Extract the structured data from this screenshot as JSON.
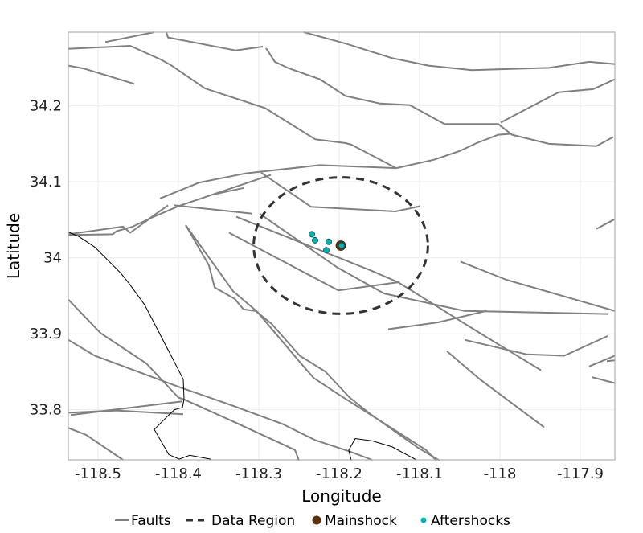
{
  "chart_data": {
    "type": "map",
    "xlabel": "Longitude",
    "ylabel": "Latitude",
    "xlim": [
      -118.537,
      -117.857
    ],
    "ylim": [
      33.734,
      34.297
    ],
    "grid": true,
    "x_ticks": [
      -118.5,
      -118.4,
      -118.3,
      -118.2,
      -118.1,
      -118,
      -117.9
    ],
    "x_tick_labels": [
      "-118.5",
      "-118.4",
      "-118.3",
      "-118.2",
      "-118.1",
      "-118",
      "-117.9"
    ],
    "y_ticks": [
      33.8,
      33.9,
      34,
      34.1,
      34.2
    ],
    "y_tick_labels": [
      "33.8",
      "33.9",
      "34",
      "34.1",
      "34.2"
    ],
    "legend": {
      "placement": "bottom",
      "items": [
        {
          "label": "Faults",
          "symbol": "line",
          "color": "#808080"
        },
        {
          "label": "Data Region",
          "symbol": "dashed-line",
          "color": "#333333"
        },
        {
          "label": "Mainshock",
          "symbol": "dot",
          "color": "#5c3310"
        },
        {
          "label": "Aftershocks",
          "symbol": "dot",
          "color": "#00b3b3"
        }
      ]
    },
    "colors": {
      "faults": "#808080",
      "coastline": "#000000",
      "region": "#333333",
      "mainshock": "#5c3310",
      "aftershocks": "#00b3b3"
    },
    "mainshock": {
      "lon": -118.198,
      "lat": 34.016
    },
    "aftershocks": [
      {
        "lon": -118.234,
        "lat": 34.031
      },
      {
        "lon": -118.23,
        "lat": 34.023
      },
      {
        "lon": -118.213,
        "lat": 34.021
      },
      {
        "lon": -118.216,
        "lat": 34.01
      },
      {
        "lon": -118.197,
        "lat": 34.016
      }
    ],
    "data_region": {
      "center_lon": -118.198,
      "center_lat": 34.016,
      "radius_km": 10
    },
    "coastline": [
      [
        [
          -118.537,
          34.034
        ],
        [
          -118.524,
          34.028
        ],
        [
          -118.504,
          34.014
        ],
        [
          -118.472,
          33.98
        ],
        [
          -118.462,
          33.967
        ],
        [
          -118.442,
          33.938
        ],
        [
          -118.412,
          33.877
        ],
        [
          -118.394,
          33.84
        ],
        [
          -118.393,
          33.814
        ],
        [
          -118.395,
          33.803
        ],
        [
          -118.405,
          33.8
        ],
        [
          -118.412,
          33.793
        ],
        [
          -118.43,
          33.774
        ],
        [
          -118.412,
          33.741
        ],
        [
          -118.399,
          33.735
        ],
        [
          -118.386,
          33.74
        ],
        [
          -118.36,
          33.735
        ]
      ],
      [
        [
          -118.185,
          33.733
        ],
        [
          -118.188,
          33.747
        ],
        [
          -118.18,
          33.762
        ],
        [
          -118.159,
          33.759
        ],
        [
          -118.134,
          33.751
        ],
        [
          -118.104,
          33.734
        ]
      ]
    ],
    "faults": [
      [
        [
          -118.491,
          34.284
        ],
        [
          -118.43,
          34.297
        ]
      ],
      [
        [
          -118.537,
          34.275
        ],
        [
          -118.46,
          34.279
        ],
        [
          -118.422,
          34.261
        ],
        [
          -118.41,
          34.254
        ],
        [
          -118.367,
          34.223
        ],
        [
          -118.292,
          34.197
        ],
        [
          -118.23,
          34.156
        ],
        [
          -118.192,
          34.151
        ],
        [
          -118.185,
          34.149
        ],
        [
          -118.129,
          34.118
        ]
      ],
      [
        [
          -118.537,
          34.253
        ],
        [
          -118.517,
          34.249
        ],
        [
          -118.455,
          34.229
        ]
      ],
      [
        [
          -118.415,
          34.297
        ],
        [
          -118.413,
          34.29
        ],
        [
          -118.329,
          34.273
        ],
        [
          -118.295,
          34.278
        ]
      ],
      [
        [
          -118.291,
          34.276
        ],
        [
          -118.28,
          34.258
        ],
        [
          -118.264,
          34.25
        ],
        [
          -118.224,
          34.235
        ],
        [
          -118.192,
          34.213
        ],
        [
          -118.149,
          34.203
        ],
        [
          -118.112,
          34.201
        ],
        [
          -118.069,
          34.176
        ],
        [
          -118.002,
          34.176
        ],
        [
          -117.985,
          34.162
        ],
        [
          -117.939,
          34.15
        ],
        [
          -117.88,
          34.147
        ],
        [
          -117.859,
          34.159
        ]
      ],
      [
        [
          -118.244,
          34.297
        ],
        [
          -118.192,
          34.282
        ],
        [
          -118.135,
          34.263
        ],
        [
          -118.089,
          34.253
        ],
        [
          -118.035,
          34.247
        ],
        [
          -117.939,
          34.25
        ],
        [
          -117.889,
          34.258
        ],
        [
          -117.857,
          34.255
        ]
      ],
      [
        [
          -117.999,
          34.178
        ],
        [
          -117.927,
          34.218
        ],
        [
          -117.884,
          34.222
        ],
        [
          -117.857,
          34.235
        ]
      ],
      [
        [
          -118.423,
          34.078
        ],
        [
          -118.374,
          34.099
        ],
        [
          -118.317,
          34.111
        ],
        [
          -118.224,
          34.122
        ],
        [
          -118.129,
          34.118
        ],
        [
          -118.082,
          34.129
        ],
        [
          -118.049,
          34.141
        ],
        [
          -118.029,
          34.151
        ],
        [
          -118.002,
          34.162
        ],
        [
          -117.988,
          34.163
        ]
      ],
      [
        [
          -118.354,
          34.084
        ],
        [
          -118.318,
          34.092
        ]
      ],
      [
        [
          -118.537,
          34.031
        ],
        [
          -118.469,
          34.041
        ],
        [
          -118.46,
          34.033
        ],
        [
          -118.435,
          34.052
        ],
        [
          -118.4,
          34.068
        ],
        [
          -118.285,
          34.109
        ]
      ],
      [
        [
          -118.537,
          34.03
        ],
        [
          -118.482,
          34.031
        ],
        [
          -118.477,
          34.035
        ],
        [
          -118.457,
          34.041
        ],
        [
          -118.437,
          34.051
        ],
        [
          -118.413,
          34.069
        ]
      ],
      [
        [
          -118.405,
          34.069
        ],
        [
          -118.308,
          34.058
        ]
      ],
      [
        [
          -118.297,
          34.112
        ],
        [
          -118.235,
          34.067
        ],
        [
          -118.13,
          34.061
        ],
        [
          -118.099,
          34.068
        ]
      ],
      [
        [
          -118.328,
          34.054
        ],
        [
          -118.16,
          33.983
        ],
        [
          -118.127,
          33.968
        ],
        [
          -118.022,
          33.899
        ],
        [
          -117.949,
          33.852
        ]
      ],
      [
        [
          -118.299,
          34.058
        ],
        [
          -118.202,
          33.987
        ],
        [
          -118.144,
          33.953
        ],
        [
          -118.044,
          33.93
        ],
        [
          -117.866,
          33.926
        ]
      ],
      [
        [
          -118.337,
          34.033
        ],
        [
          -118.201,
          33.957
        ],
        [
          -118.125,
          33.968
        ]
      ],
      [
        [
          -118.139,
          33.906
        ],
        [
          -118.077,
          33.915
        ],
        [
          -118.017,
          33.93
        ]
      ],
      [
        [
          -118.049,
          33.995
        ],
        [
          -117.992,
          33.971
        ],
        [
          -117.857,
          33.93
        ]
      ],
      [
        [
          -118.044,
          33.892
        ],
        [
          -117.967,
          33.873
        ],
        [
          -117.92,
          33.871
        ],
        [
          -117.866,
          33.897
        ]
      ],
      [
        [
          -118.066,
          33.877
        ],
        [
          -118.025,
          33.84
        ],
        [
          -117.945,
          33.777
        ]
      ],
      [
        [
          -117.889,
          33.857
        ],
        [
          -117.857,
          33.871
        ]
      ],
      [
        [
          -117.867,
          33.864
        ],
        [
          -117.857,
          33.865
        ]
      ],
      [
        [
          -117.886,
          33.843
        ],
        [
          -117.857,
          33.835
        ]
      ],
      [
        [
          -117.88,
          34.038
        ],
        [
          -117.857,
          34.051
        ]
      ],
      [
        [
          -118.391,
          34.043
        ],
        [
          -118.362,
          33.99
        ],
        [
          -118.355,
          33.961
        ],
        [
          -118.33,
          33.946
        ],
        [
          -118.319,
          33.932
        ],
        [
          -118.304,
          33.93
        ],
        [
          -118.284,
          33.913
        ],
        [
          -118.249,
          33.871
        ],
        [
          -118.217,
          33.85
        ],
        [
          -118.187,
          33.816
        ],
        [
          -118.162,
          33.795
        ],
        [
          -118.102,
          33.75
        ],
        [
          -118.075,
          33.733
        ]
      ],
      [
        [
          -118.391,
          34.043
        ],
        [
          -118.332,
          33.956
        ],
        [
          -118.302,
          33.929
        ],
        [
          -118.25,
          33.864
        ],
        [
          -118.232,
          33.842
        ],
        [
          -118.202,
          33.821
        ],
        [
          -118.092,
          33.747
        ],
        [
          -118.079,
          33.733
        ]
      ],
      [
        [
          -118.537,
          33.945
        ],
        [
          -118.497,
          33.901
        ],
        [
          -118.44,
          33.861
        ],
        [
          -118.4,
          33.816
        ],
        [
          -118.392,
          33.813
        ],
        [
          -118.337,
          33.787
        ],
        [
          -118.255,
          33.747
        ],
        [
          -118.25,
          33.733
        ]
      ],
      [
        [
          -118.537,
          33.892
        ],
        [
          -118.504,
          33.871
        ],
        [
          -118.397,
          33.829
        ],
        [
          -118.337,
          33.807
        ],
        [
          -118.27,
          33.781
        ],
        [
          -118.23,
          33.76
        ],
        [
          -118.187,
          33.745
        ],
        [
          -118.159,
          33.734
        ]
      ],
      [
        [
          -118.534,
          33.793
        ],
        [
          -118.395,
          33.811
        ]
      ],
      [
        [
          -118.537,
          33.796
        ],
        [
          -118.477,
          33.799
        ],
        [
          -118.394,
          33.794
        ]
      ],
      [
        [
          -118.537,
          33.776
        ],
        [
          -118.515,
          33.767
        ],
        [
          -118.469,
          33.734
        ]
      ]
    ]
  }
}
